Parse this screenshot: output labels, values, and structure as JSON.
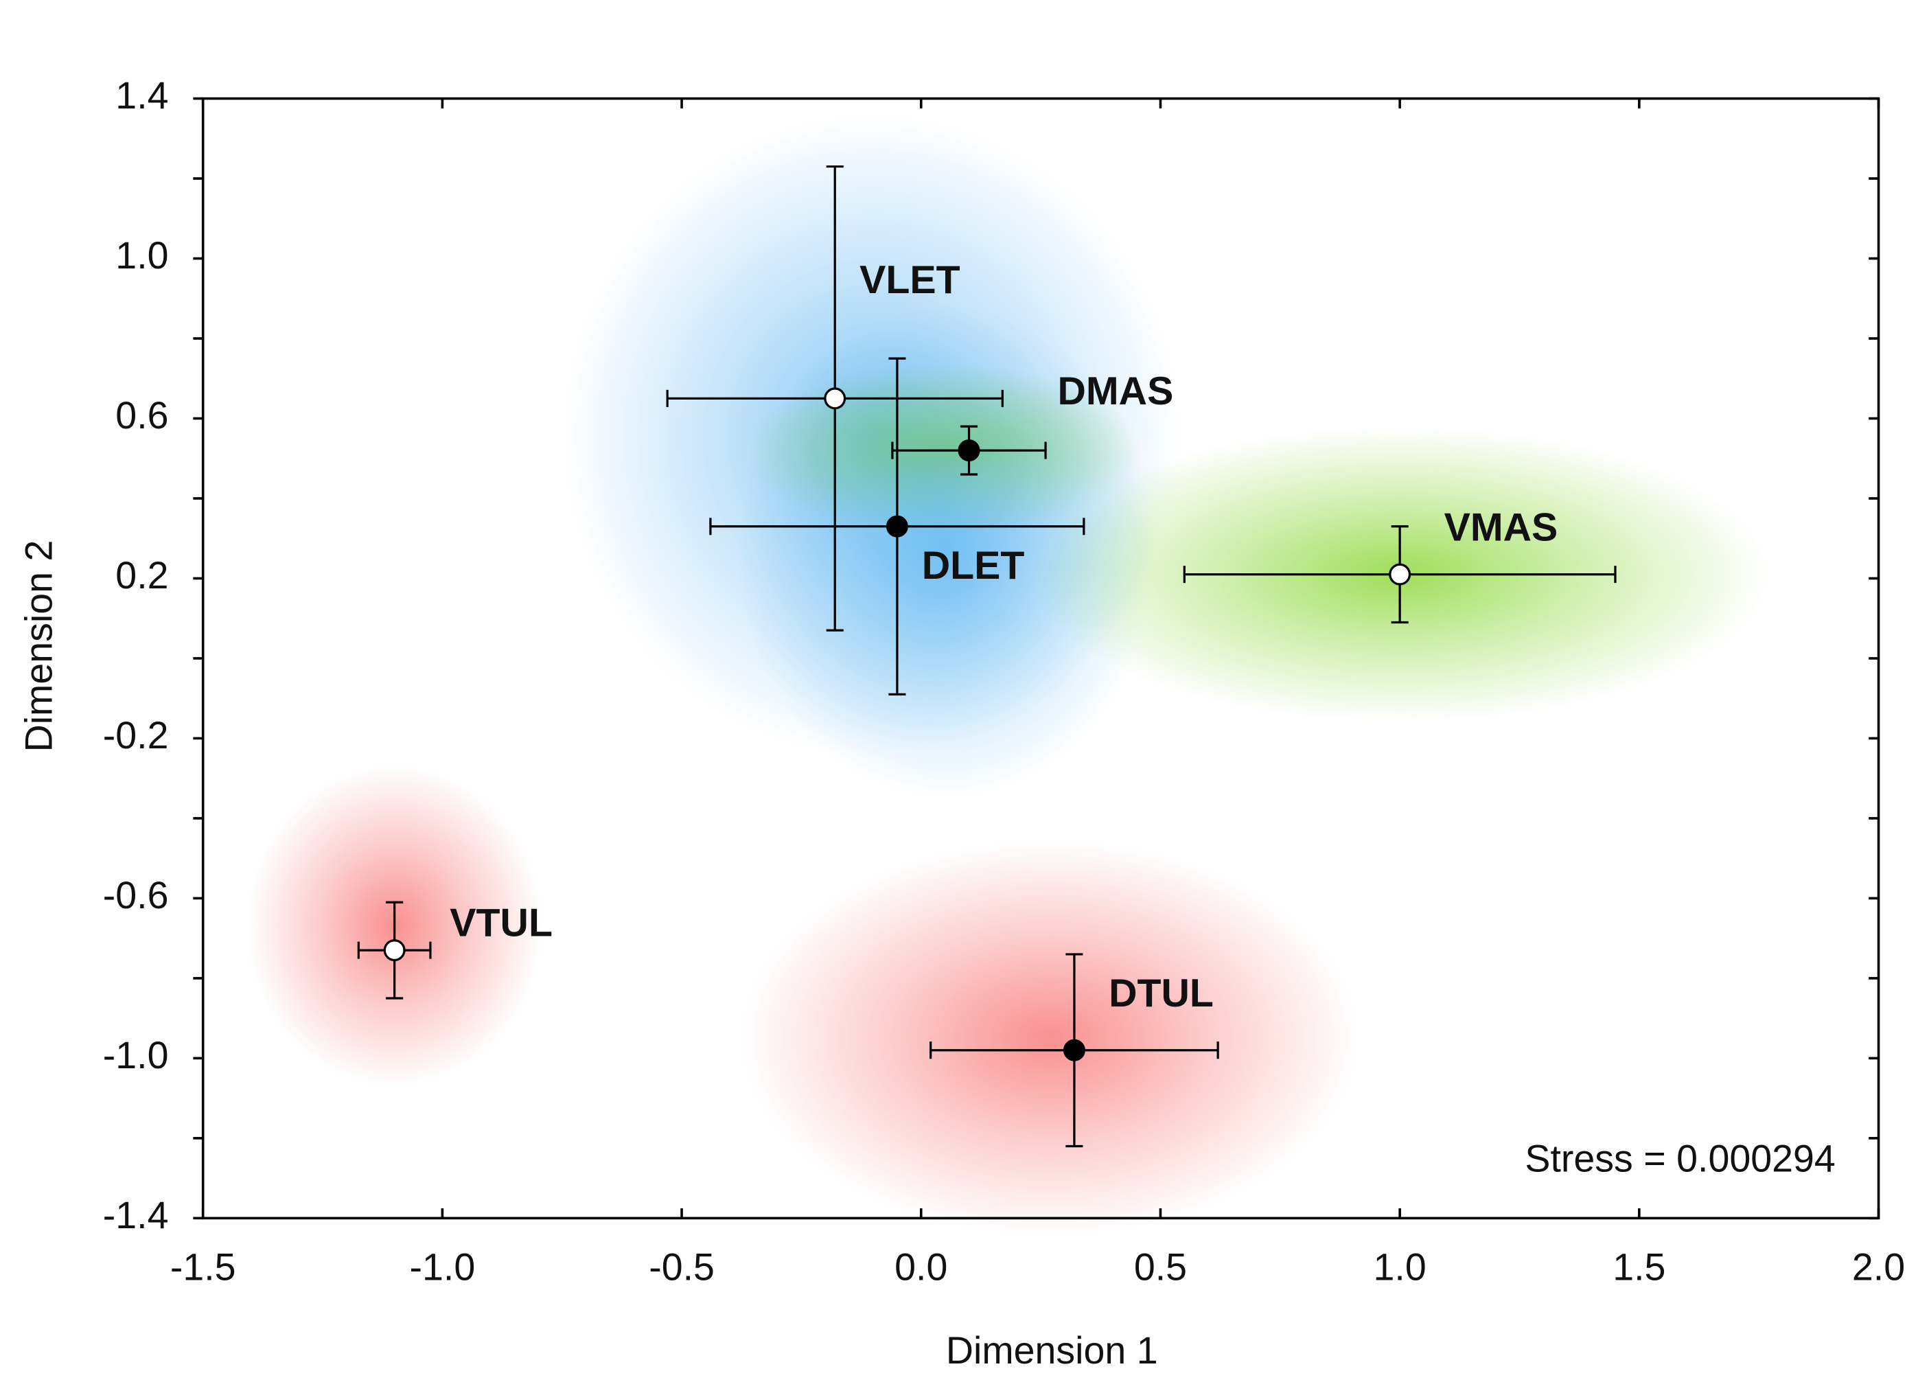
{
  "chart_data": {
    "type": "scatter",
    "xlabel": "Dimension 1",
    "ylabel": "Dimension 2",
    "annotation": "Stress = 0.000294",
    "xlim": [
      -1.5,
      2.0
    ],
    "ylim": [
      -1.4,
      1.4
    ],
    "xticks": [
      -1.5,
      {
        "value": -1,
        "label": "-1.0"
      },
      -0.5,
      {
        "value": 0,
        "label": "0.0"
      },
      0.5,
      {
        "value": 1,
        "label": "1.0"
      },
      1.5,
      {
        "value": 2,
        "label": "2.0"
      }
    ],
    "yticks": [
      1.4,
      {
        "value": 1,
        "label": "1.0"
      },
      0.6,
      0.2,
      -0.2,
      -0.6,
      {
        "value": -1,
        "label": "-1.0"
      },
      -1.4
    ],
    "minor_yticks": [
      1.2,
      0.8,
      0.4,
      0,
      -0.4,
      -0.8,
      -1.2
    ],
    "series": [
      {
        "name": "VLET",
        "color": "#ffffff",
        "glow": "#5ab4f0",
        "x": [
          -0.18
        ],
        "y": [
          0.65
        ],
        "xerr": [
          0.35
        ],
        "yerr": [
          0.58
        ]
      },
      {
        "name": "DMAS",
        "color": "#000000",
        "glow": "#7ed321",
        "x": [
          0.1
        ],
        "y": [
          0.52
        ],
        "xerr": [
          0.16
        ],
        "yerr": [
          0.06
        ]
      },
      {
        "name": "DLET",
        "color": "#000000",
        "glow": "#5ab4f0",
        "x": [
          -0.05
        ],
        "y": [
          0.33
        ],
        "xerr": [
          0.39
        ],
        "yerr": [
          0.42
        ]
      },
      {
        "name": "VMAS",
        "color": "#ffffff",
        "glow": "#7ed321",
        "x": [
          1.0
        ],
        "y": [
          0.21
        ],
        "xerr": [
          0.45
        ],
        "yerr": [
          0.12
        ]
      },
      {
        "name": "VTUL",
        "color": "#ffffff",
        "glow": "#f76b6b",
        "x": [
          -1.1
        ],
        "y": [
          -0.73
        ],
        "xerr": [
          0.075
        ],
        "yerr": [
          0.12
        ]
      },
      {
        "name": "DTUL",
        "color": "#000000",
        "glow": "#f76b6b",
        "x": [
          0.32
        ],
        "y": [
          -0.98
        ],
        "xerr": [
          0.3
        ],
        "yerr": [
          0.24
        ]
      }
    ]
  }
}
